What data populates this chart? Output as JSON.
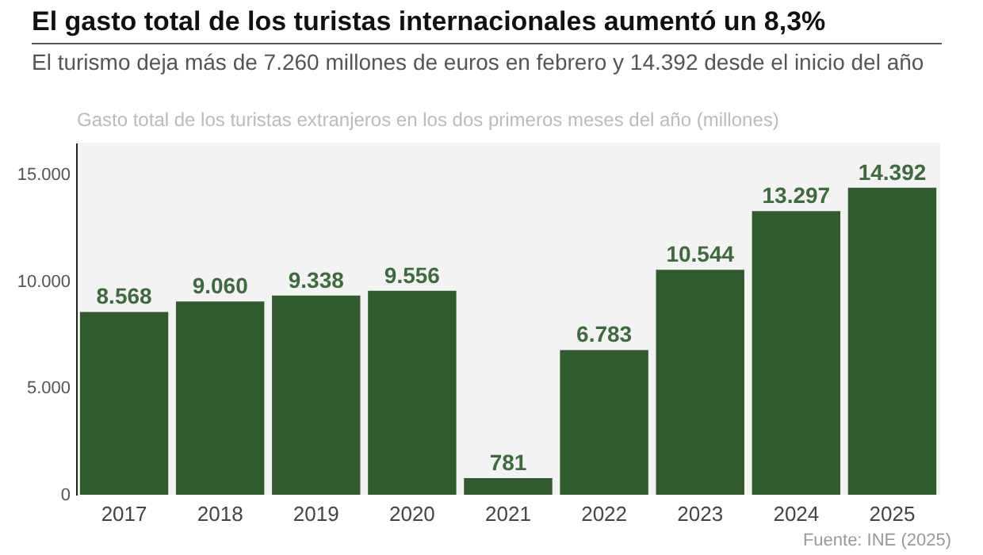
{
  "chart_data": {
    "type": "bar",
    "title": "El gasto total de los turistas internacionales aumentó un 8,3%",
    "subtitle": "El turismo deja más de 7.260 millones de euros en febrero y 14.392 desde el inicio del año",
    "ylabel": "Gasto total de los turistas extranjeros en los dos primeros meses del año (millones)",
    "categories": [
      "2017",
      "2018",
      "2019",
      "2020",
      "2021",
      "2022",
      "2023",
      "2024",
      "2025"
    ],
    "values": [
      8568,
      9060,
      9338,
      9556,
      781,
      6783,
      10544,
      13297,
      14392
    ],
    "value_labels": [
      "8.568",
      "9.060",
      "9.338",
      "9.556",
      "781",
      "6.783",
      "10.544",
      "13.297",
      "14.392"
    ],
    "color": "#2f5b2f",
    "ylim": [
      0,
      16500
    ],
    "yticks": [
      0,
      {
        "value": 5000,
        "label": "5.000"
      },
      {
        "value": 10000,
        "label": "10.000"
      },
      {
        "value": 15000,
        "label": "15.000"
      }
    ],
    "annotations": [
      "Fuente: INE (2025)"
    ]
  }
}
